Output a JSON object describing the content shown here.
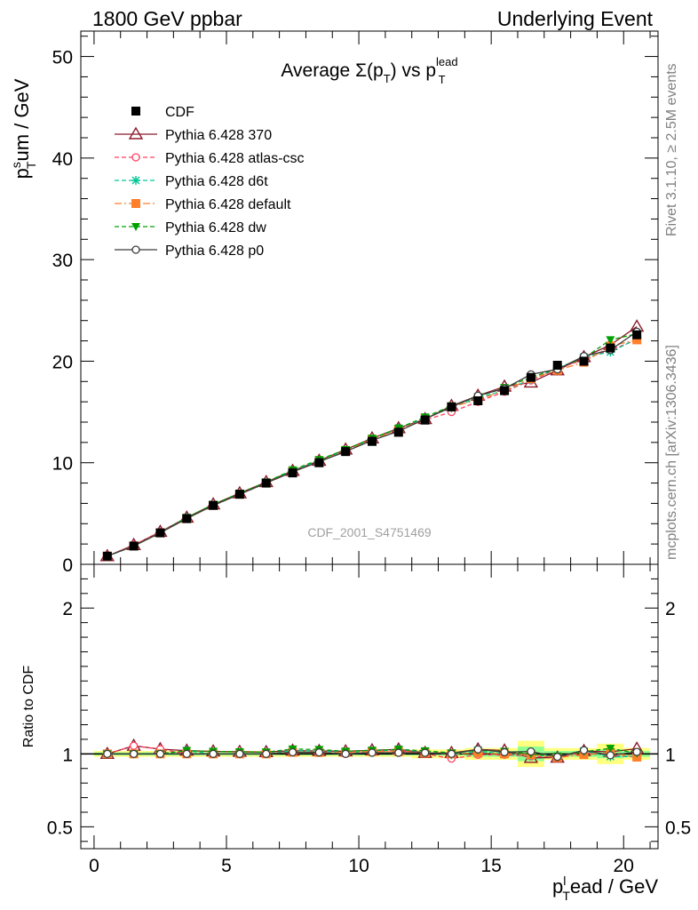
{
  "header": {
    "left": "1800 GeV ppbar",
    "right": "Underlying Event"
  },
  "side_text": {
    "rivet": "Rivet 3.1.10, ≥ 2.5M events",
    "mcplots": "mcplots.cern.ch [arXiv:1306.3436]"
  },
  "chart_data": [
    {
      "type": "line",
      "title_main": "Average Σ(p",
      "title_sub": "T",
      "title_mid": ") vs p",
      "title_sup": "lead",
      "title_sub2": "T",
      "ylabel_main": "p",
      "ylabel_sup": "s",
      "ylabel_sub": "T",
      "ylabel_rest": "um / GeV",
      "ylim": [
        0,
        52.5
      ],
      "yticks": [
        0,
        10,
        20,
        30,
        40,
        50
      ],
      "watermark": "CDF_2001_S4751469",
      "legend_position": "top-left",
      "x": [
        0.5,
        1.5,
        2.5,
        3.5,
        4.5,
        5.5,
        6.5,
        7.5,
        8.5,
        9.5,
        10.5,
        11.5,
        12.5,
        13.5,
        14.5,
        15.5,
        16.5,
        17.5,
        18.5,
        19.5,
        20.5
      ],
      "series": [
        {
          "name": "CDF",
          "color": "#000000",
          "marker": "square",
          "line": "none",
          "values": [
            0.8,
            1.8,
            3.1,
            4.5,
            5.8,
            6.9,
            8.0,
            9.0,
            10.0,
            11.1,
            12.1,
            13.0,
            14.2,
            15.5,
            16.1,
            17.1,
            18.4,
            19.6,
            20.0,
            21.3,
            22.6
          ]
        },
        {
          "name": "Pythia 6.428 370",
          "color": "#8b1a2b",
          "marker": "triangle-open",
          "line": "solid",
          "values": [
            0.8,
            1.9,
            3.2,
            4.6,
            5.9,
            7.0,
            8.1,
            9.2,
            10.2,
            11.3,
            12.4,
            13.4,
            14.3,
            15.6,
            16.6,
            17.5,
            17.9,
            19.1,
            20.4,
            21.6,
            23.4
          ]
        },
        {
          "name": "Pythia 6.428 atlas-csc",
          "color": "#ff4060",
          "marker": "circle-open",
          "line": "dashed",
          "values": [
            0.8,
            1.9,
            3.2,
            4.5,
            5.8,
            6.9,
            8.0,
            9.1,
            10.1,
            11.1,
            12.3,
            13.3,
            14.2,
            15.0,
            16.0,
            17.0,
            18.1,
            19.2,
            20.2,
            21.1,
            22.1
          ]
        },
        {
          "name": "Pythia 6.428 d6t",
          "color": "#00c896",
          "marker": "star",
          "line": "dashed",
          "values": [
            0.8,
            1.8,
            3.1,
            4.6,
            5.8,
            6.9,
            8.0,
            9.2,
            10.2,
            11.2,
            12.3,
            13.4,
            14.4,
            15.4,
            16.4,
            17.1,
            18.2,
            19.3,
            20.4,
            20.9,
            22.2
          ]
        },
        {
          "name": "Pythia 6.428 default",
          "color": "#ff7f2a",
          "marker": "square",
          "line": "dashdot",
          "values": [
            0.8,
            1.8,
            3.1,
            4.5,
            5.8,
            6.9,
            8.0,
            9.1,
            10.1,
            11.2,
            12.3,
            13.2,
            14.3,
            15.5,
            16.2,
            17.1,
            18.3,
            19.1,
            19.9,
            21.5,
            22.1
          ]
        },
        {
          "name": "Pythia 6.428 dw",
          "color": "#00a000",
          "marker": "triangle-down",
          "line": "dashed",
          "values": [
            0.8,
            1.8,
            3.1,
            4.6,
            5.9,
            7.0,
            8.1,
            9.3,
            10.3,
            11.3,
            12.4,
            13.4,
            14.5,
            15.6,
            16.5,
            17.4,
            18.4,
            19.3,
            20.3,
            22.1,
            22.7
          ]
        },
        {
          "name": "Pythia 6.428 p0",
          "color": "#3c3c3c",
          "marker": "circle-open",
          "line": "solid",
          "values": [
            0.8,
            1.8,
            3.1,
            4.5,
            5.8,
            6.9,
            8.0,
            9.1,
            10.1,
            11.1,
            12.2,
            13.1,
            14.3,
            15.5,
            16.6,
            17.3,
            18.7,
            19.2,
            20.5,
            21.1,
            22.9
          ]
        }
      ]
    },
    {
      "type": "line",
      "ylabel": "Ratio to CDF",
      "xlabel_main": "p",
      "xlabel_sup": "l",
      "xlabel_sub": "T",
      "xlabel_rest": "ead / GeV",
      "xlim": [
        -0.5,
        21.3
      ],
      "xticks": [
        0,
        5,
        10,
        15,
        20
      ],
      "ylim": [
        0.35,
        2.3
      ],
      "yticks": [
        0.5,
        1,
        2
      ],
      "band_inner_color": "#90ff90",
      "band_outer_color": "#ffff80",
      "band_inner": [
        0.01,
        0.01,
        0.01,
        0.01,
        0.01,
        0.01,
        0.01,
        0.01,
        0.01,
        0.01,
        0.01,
        0.01,
        0.01,
        0.01,
        0.02,
        0.02,
        0.05,
        0.02,
        0.02,
        0.03,
        0.02
      ],
      "band_outer": [
        0.02,
        0.02,
        0.02,
        0.02,
        0.02,
        0.02,
        0.02,
        0.02,
        0.02,
        0.02,
        0.02,
        0.02,
        0.03,
        0.03,
        0.04,
        0.04,
        0.09,
        0.04,
        0.04,
        0.07,
        0.04
      ]
    }
  ]
}
